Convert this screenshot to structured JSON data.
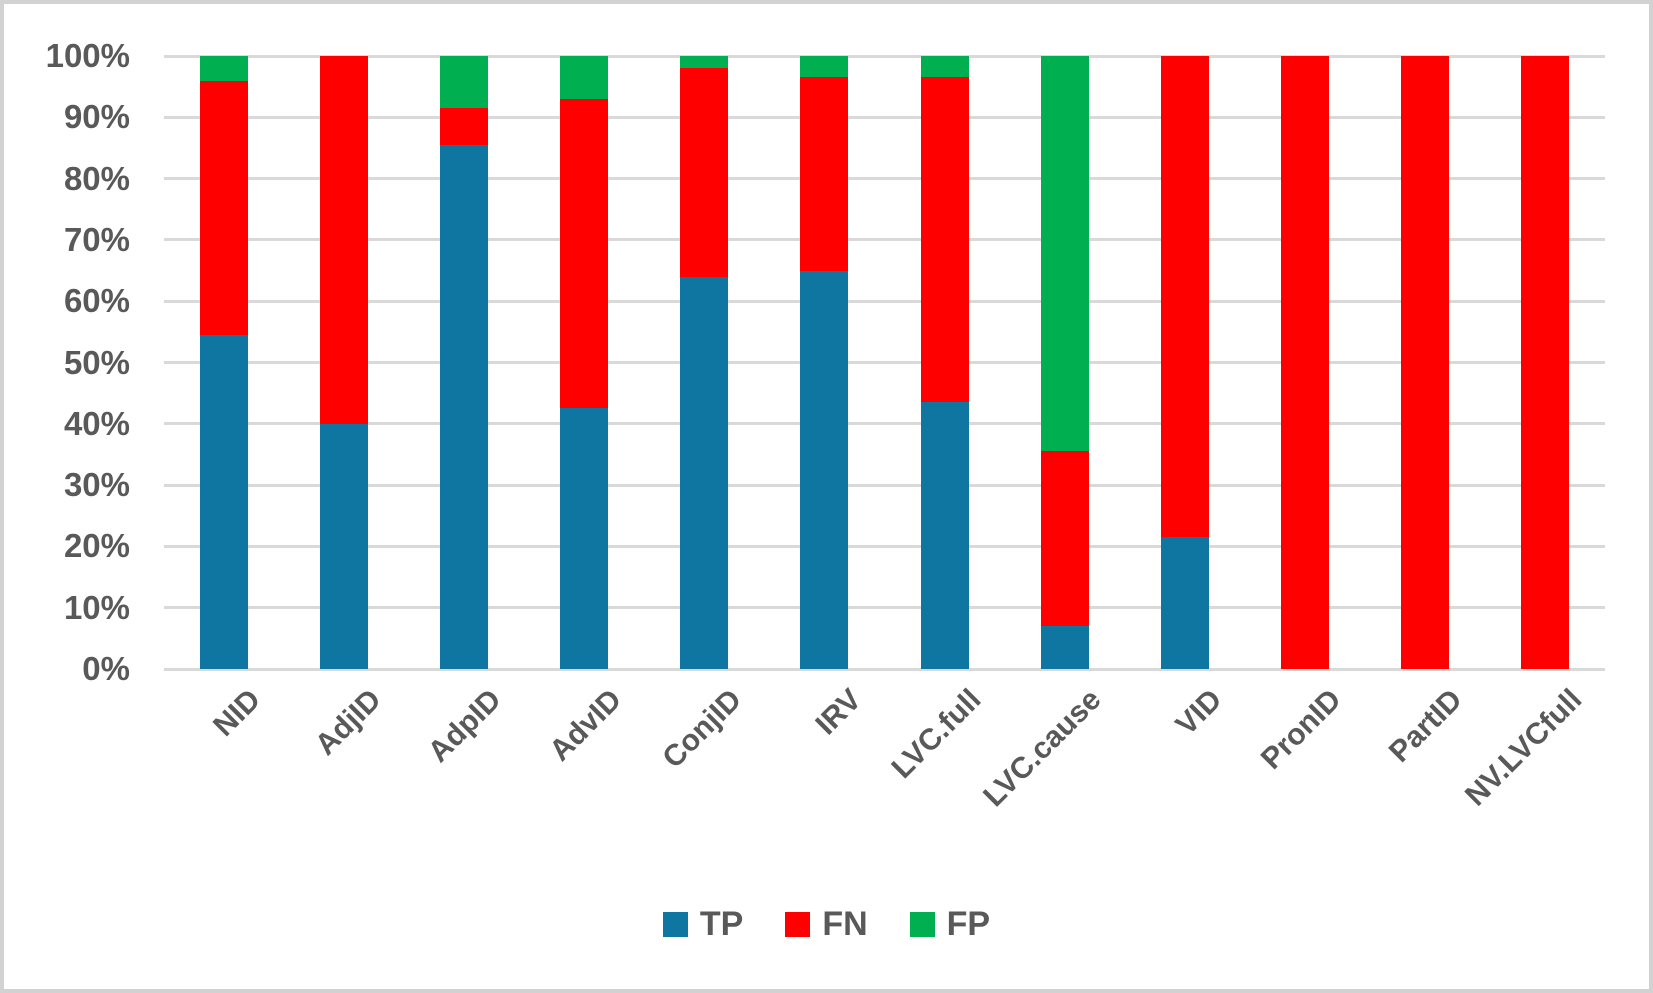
{
  "chart_data": {
    "type": "bar",
    "subtype": "stacked-100-percent-column",
    "categories": [
      "NID",
      "AdjID",
      "AdpID",
      "AdvID",
      "ConjID",
      "IRV",
      "LVC.full",
      "LVC.cause",
      "VID",
      "PronID",
      "PartID",
      "NV.LVCfull"
    ],
    "series": [
      {
        "name": "TP",
        "color": "#0f76a2",
        "values": [
          54.5,
          40,
          85.5,
          42.5,
          64,
          65,
          43.5,
          7,
          21.5,
          0,
          0,
          0
        ]
      },
      {
        "name": "FN",
        "color": "#ff0000",
        "values": [
          41.5,
          60,
          6,
          50.5,
          34,
          31.5,
          53,
          28.5,
          78.5,
          100,
          100,
          100
        ]
      },
      {
        "name": "FP",
        "color": "#00b050",
        "values": [
          4,
          0,
          8.5,
          7,
          2,
          3.5,
          3.5,
          64.5,
          0,
          0,
          0,
          0
        ]
      }
    ],
    "title": "",
    "xlabel": "",
    "ylabel": "",
    "ylim": [
      0,
      100
    ],
    "y_tick_labels": [
      "0%",
      "10%",
      "20%",
      "30%",
      "40%",
      "50%",
      "60%",
      "70%",
      "80%",
      "90%",
      "100%"
    ],
    "grid": "horizontal",
    "legend_position": "bottom",
    "legend_labels": [
      "TP",
      "FN",
      "FP"
    ]
  },
  "colors": {
    "grid": "#d9d9d9",
    "axis_text": "#595959",
    "frame_border": "#d2d2d2",
    "background": "#ffffff"
  }
}
